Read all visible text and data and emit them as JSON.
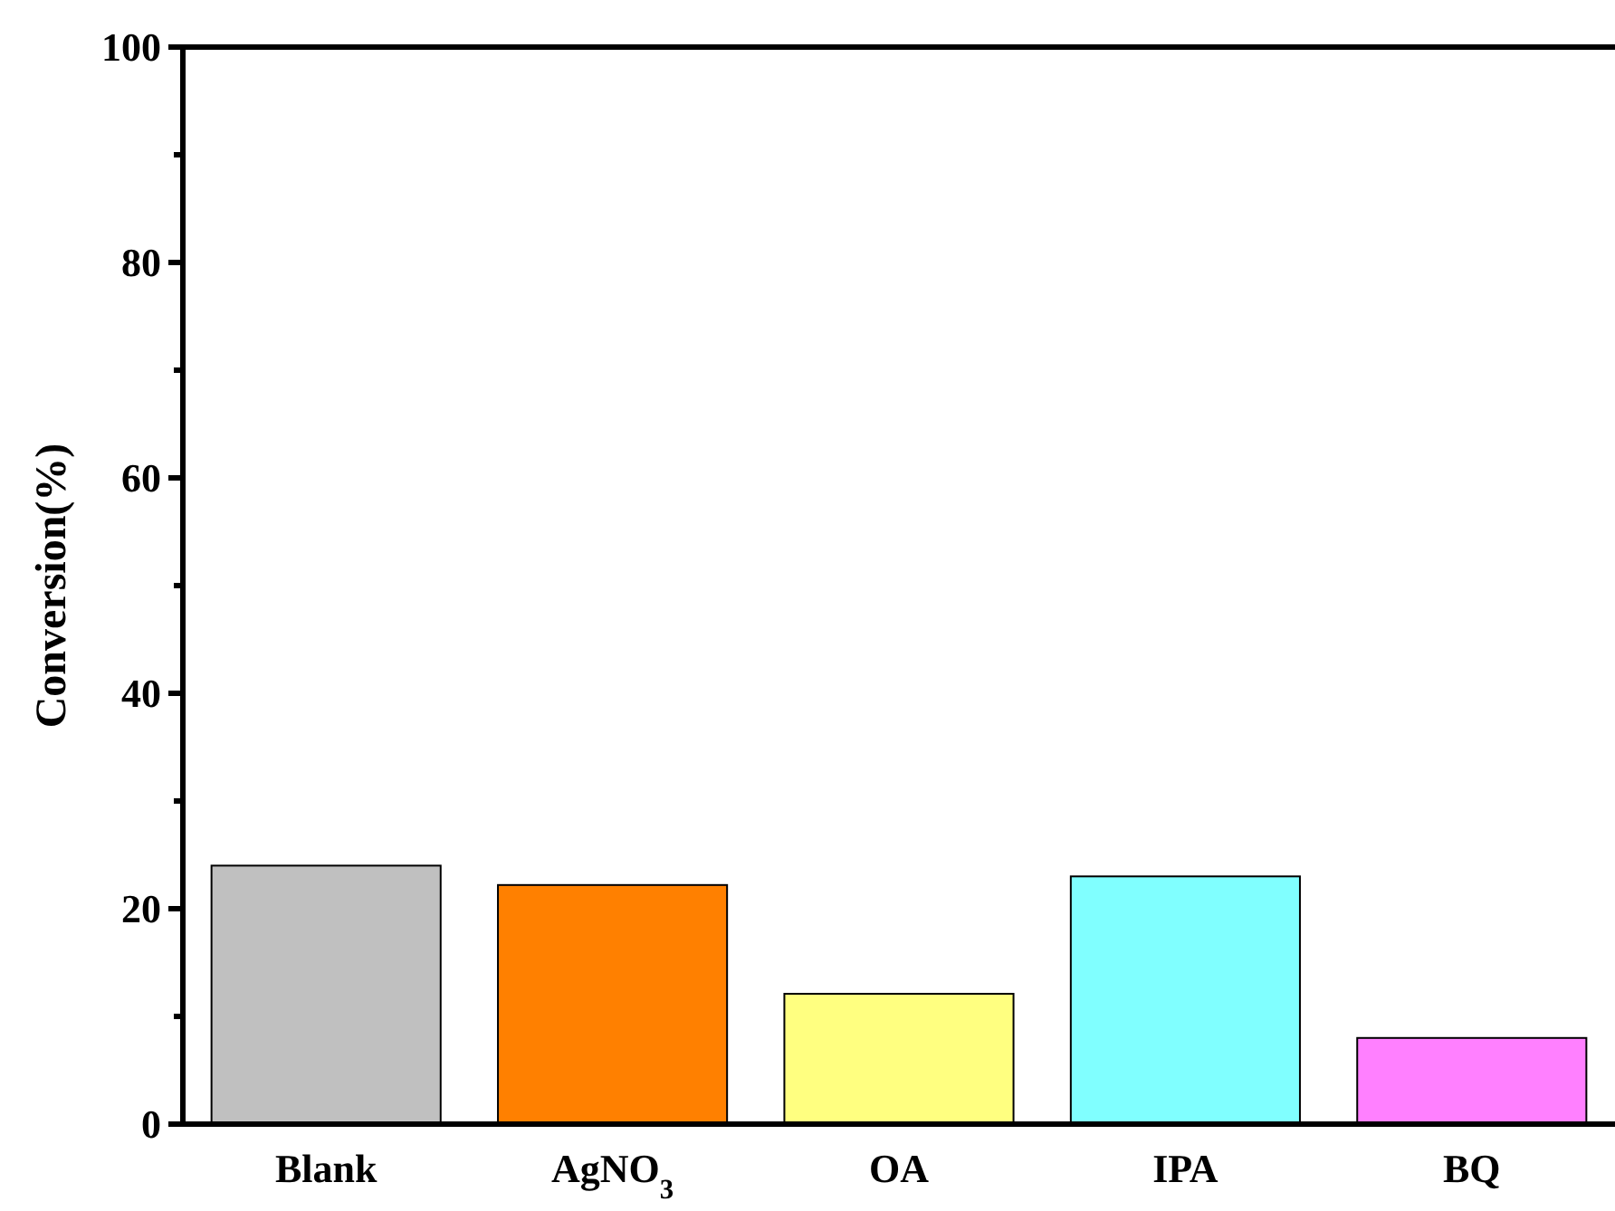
{
  "chart_data": {
    "type": "bar",
    "ylabel": "Conversion(%)",
    "categories": [
      "Blank",
      "AgNO$_{3}$",
      "OA",
      "IPA",
      "BQ"
    ],
    "values": [
      24,
      22.2,
      12.1,
      23,
      8
    ],
    "colors": [
      "#c0c0c0",
      "#ff8000",
      "#ffff80",
      "#80ffff",
      "#ff80ff"
    ],
    "ylim": [
      0,
      100
    ],
    "yticks": [
      0,
      {
        "value": 10,
        "label": null
      },
      20,
      {
        "value": 30,
        "label": null
      },
      40,
      {
        "value": 50,
        "label": null
      },
      60,
      {
        "value": 70,
        "label": null
      },
      80,
      {
        "value": 90,
        "label": null
      },
      100
    ],
    "grid": false
  }
}
